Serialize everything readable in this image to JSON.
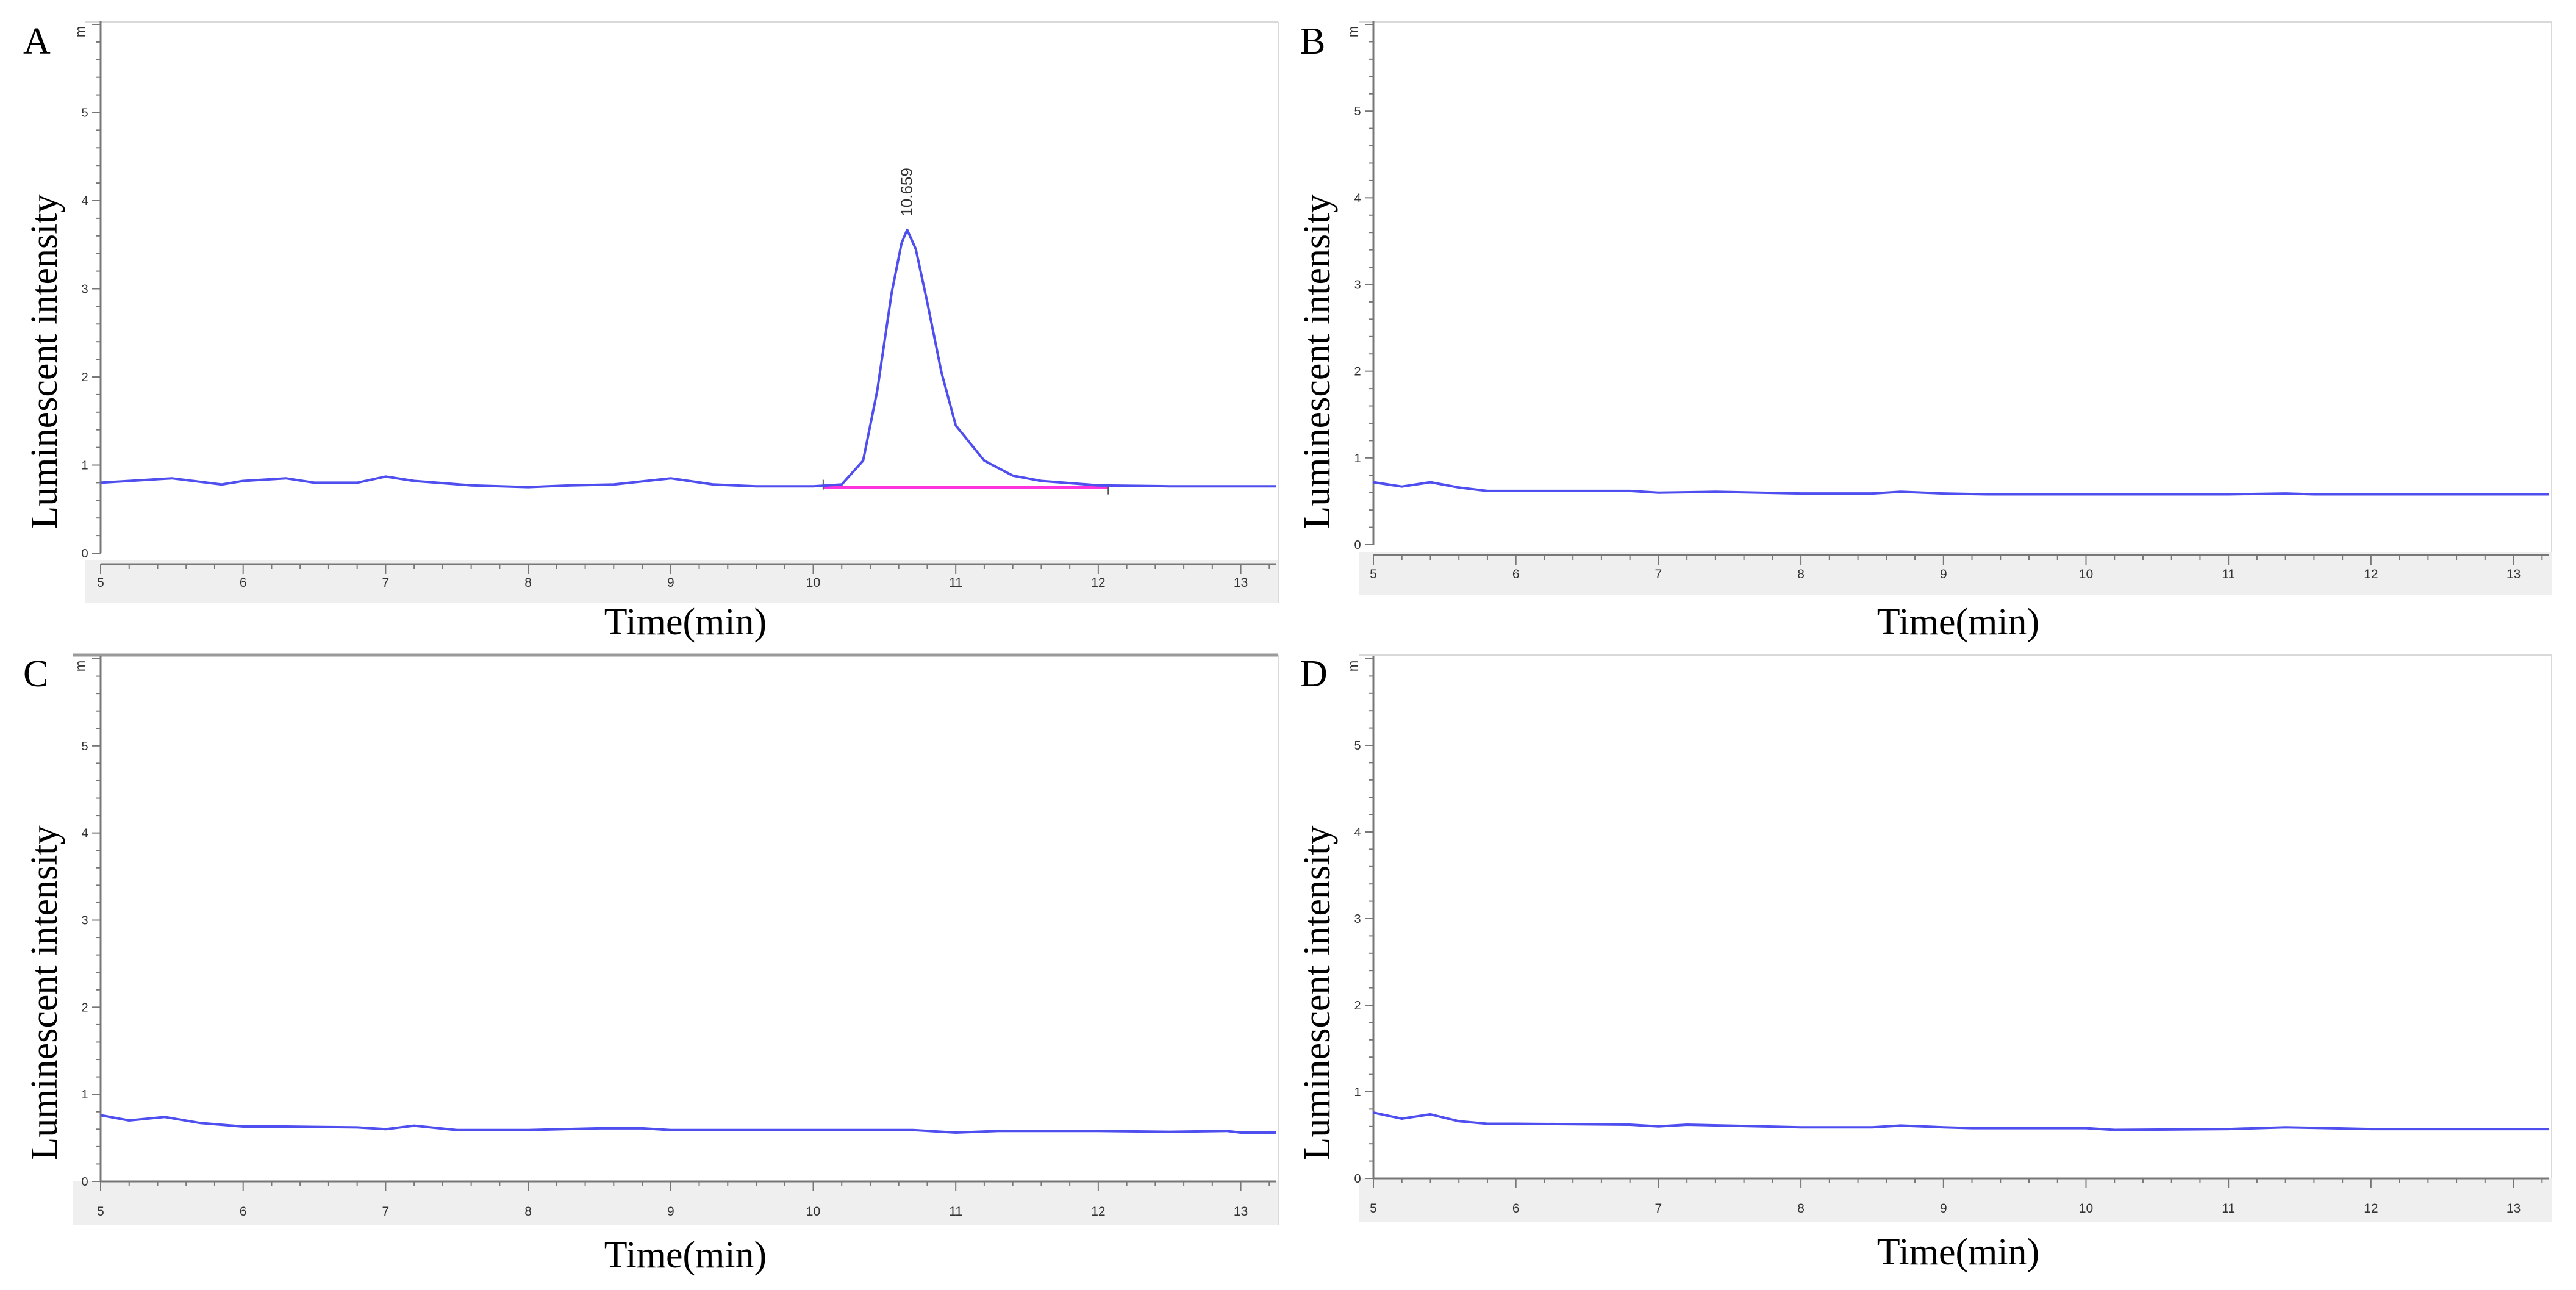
{
  "colors": {
    "trace": "#4f4ff0",
    "baseline": "#ff33dd",
    "axis": "#777777",
    "axis_strip": "#efefef",
    "frame": "#d9d9d9",
    "frame_dark": "#9a9a9a"
  },
  "chart_data": [
    {
      "panel": "A",
      "type": "line",
      "xlabel": "Time(min)",
      "ylabel": "Luminescent intensity",
      "y_unit_label": "m",
      "xlim": [
        5,
        13.25
      ],
      "ylim": [
        0,
        6
      ],
      "x_ticks": [
        5,
        6,
        7,
        8,
        9,
        10,
        11,
        12,
        13
      ],
      "y_ticks": [
        0,
        1,
        2,
        3,
        4,
        5
      ],
      "peak_label": "10.659",
      "peak": {
        "x": 10.659,
        "y": 3.67
      },
      "baseline_segment": {
        "x": [
          10.07,
          12.07
        ],
        "y": [
          0.75,
          0.75
        ]
      },
      "series": [
        {
          "name": "trace",
          "x": [
            5.0,
            5.5,
            5.85,
            6.0,
            6.3,
            6.5,
            6.8,
            7.0,
            7.2,
            7.6,
            8.0,
            8.3,
            8.6,
            9.0,
            9.3,
            9.6,
            10.0,
            10.2,
            10.35,
            10.45,
            10.55,
            10.62,
            10.659,
            10.72,
            10.8,
            10.9,
            11.0,
            11.2,
            11.4,
            11.6,
            12.0,
            12.5,
            13.25
          ],
          "y": [
            0.8,
            0.85,
            0.78,
            0.82,
            0.85,
            0.8,
            0.8,
            0.87,
            0.82,
            0.77,
            0.75,
            0.77,
            0.78,
            0.85,
            0.78,
            0.76,
            0.76,
            0.78,
            1.05,
            1.85,
            2.95,
            3.52,
            3.67,
            3.45,
            2.85,
            2.05,
            1.45,
            1.05,
            0.88,
            0.82,
            0.77,
            0.76,
            0.76
          ]
        }
      ]
    },
    {
      "panel": "B",
      "type": "line",
      "xlabel": "Time(min)",
      "ylabel": "Luminescent intensity",
      "y_unit_label": "m",
      "xlim": [
        5,
        13.25
      ],
      "ylim": [
        0,
        6
      ],
      "x_ticks": [
        5,
        6,
        7,
        8,
        9,
        10,
        11,
        12,
        13
      ],
      "y_ticks": [
        0,
        1,
        2,
        3,
        4,
        5
      ],
      "series": [
        {
          "name": "trace",
          "x": [
            5.0,
            5.2,
            5.4,
            5.6,
            5.8,
            6.0,
            6.8,
            7.0,
            7.4,
            8.0,
            8.5,
            8.7,
            9.0,
            9.3,
            10.0,
            11.0,
            11.4,
            11.6,
            12.0,
            13.25
          ],
          "y": [
            0.72,
            0.67,
            0.72,
            0.66,
            0.62,
            0.62,
            0.62,
            0.6,
            0.61,
            0.59,
            0.59,
            0.61,
            0.59,
            0.58,
            0.58,
            0.58,
            0.59,
            0.58,
            0.58,
            0.58
          ]
        }
      ]
    },
    {
      "panel": "C",
      "type": "line",
      "xlabel": "Time(min)",
      "ylabel": "Luminescent intensity",
      "y_unit_label": "m",
      "xlim": [
        5,
        13.25
      ],
      "ylim": [
        0,
        6
      ],
      "x_ticks": [
        5,
        6,
        7,
        8,
        9,
        10,
        11,
        12,
        13
      ],
      "y_ticks": [
        0,
        1,
        2,
        3,
        4,
        5
      ],
      "series": [
        {
          "name": "trace",
          "x": [
            5.0,
            5.2,
            5.45,
            5.7,
            6.0,
            6.3,
            6.8,
            7.0,
            7.2,
            7.5,
            8.0,
            8.5,
            8.8,
            9.0,
            9.5,
            10.0,
            10.7,
            11.0,
            11.3,
            12.0,
            12.5,
            12.9,
            13.0,
            13.25
          ],
          "y": [
            0.76,
            0.7,
            0.74,
            0.67,
            0.63,
            0.63,
            0.62,
            0.6,
            0.64,
            0.59,
            0.59,
            0.61,
            0.61,
            0.59,
            0.59,
            0.59,
            0.59,
            0.56,
            0.58,
            0.58,
            0.57,
            0.58,
            0.56,
            0.56
          ]
        }
      ]
    },
    {
      "panel": "D",
      "type": "line",
      "xlabel": "Time(min)",
      "ylabel": "Luminescent intensity",
      "y_unit_label": "m",
      "xlim": [
        5,
        13.25
      ],
      "ylim": [
        0,
        6
      ],
      "x_ticks": [
        5,
        6,
        7,
        8,
        9,
        10,
        11,
        12,
        13
      ],
      "y_ticks": [
        0,
        1,
        2,
        3,
        4,
        5
      ],
      "series": [
        {
          "name": "trace",
          "x": [
            5.0,
            5.2,
            5.4,
            5.6,
            5.8,
            6.0,
            6.8,
            7.0,
            7.2,
            8.0,
            8.5,
            8.7,
            9.0,
            9.2,
            10.0,
            10.2,
            11.0,
            11.4,
            11.7,
            12.0,
            13.25
          ],
          "y": [
            0.76,
            0.69,
            0.74,
            0.66,
            0.63,
            0.63,
            0.62,
            0.6,
            0.62,
            0.59,
            0.59,
            0.61,
            0.59,
            0.58,
            0.58,
            0.56,
            0.57,
            0.59,
            0.58,
            0.57,
            0.57
          ]
        }
      ]
    }
  ]
}
